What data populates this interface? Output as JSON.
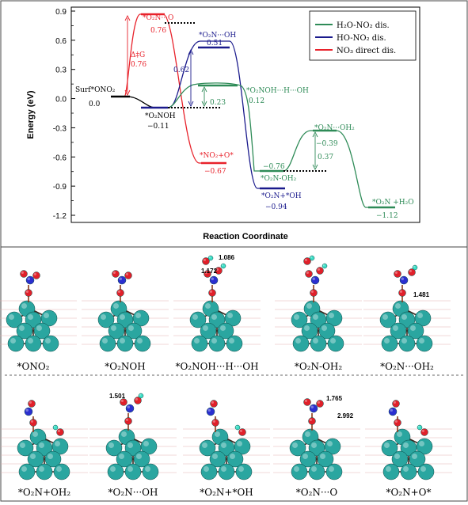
{
  "energy_diagram": {
    "ylabel": "Energy (eV)",
    "xlabel": "Reaction Coordinate",
    "yticks": [
      "0.9",
      "0.6",
      "0.3",
      "0.0",
      "-0.3",
      "-0.6",
      "-0.9",
      "-1.2"
    ],
    "legend": [
      {
        "label": "H₂O-NO₂ dis.",
        "color": "#2e8b57"
      },
      {
        "label": "HO-NO₂ dis.",
        "color": "#1a1a8c"
      },
      {
        "label": "NO₃ direct dis.",
        "color": "#e8222b"
      }
    ],
    "levels": {
      "surf_name": "Surf*ONO₂",
      "surf_val": "0.0",
      "o2noh_name": "*O₂NOH",
      "o2noh_val": "−0.11",
      "o2no_name": "*O₂N···O",
      "o2no_val": "0.76",
      "dg_label": "Δ‡G",
      "dg_val": "0.76",
      "no2o_name": "*NO₂+O*",
      "no2o_val": "−0.67",
      "o2n_oh_name": "*O₂N···OH",
      "o2n_oh_val": "0.51",
      "blue_barrier": "0.62",
      "o2n_plus_oh_name": "*O₂N+*OH",
      "o2n_plus_oh_val": "−0.94",
      "green_ts_name": "*O₂NOH···H···OH",
      "green_ts_val": "0.12",
      "green_barrier1": "0.23",
      "o2n_oh2_val": "−0.76",
      "o2n_oh2_name": "*O₂N-OH₂",
      "o2n_oh2_ts_name": "*O₂N···OH₂",
      "o2n_oh2_ts_val": "−0.39",
      "green_barrier2": "0.37",
      "final_name": "*O₂N +H₂O",
      "final_val": "−1.12"
    }
  },
  "structures": {
    "row1": [
      {
        "label": "*ONO₂"
      },
      {
        "label": "*O₂NOH"
      },
      {
        "label": "*O₂NOH···H···OH",
        "d1": "1.086",
        "d2": "1.172"
      },
      {
        "label": "*O₂N-OH₂"
      },
      {
        "label": "*O₂N···OH₂",
        "d1": "1.481"
      }
    ],
    "row2": [
      {
        "label": "*O₂N+OH₂"
      },
      {
        "label": "*O₂N···OH",
        "d1": "1.501"
      },
      {
        "label": "*O₂N+*OH"
      },
      {
        "label": "*O₂N···O",
        "d1": "1.765",
        "d2": "2.992"
      },
      {
        "label": "*O₂N+O*"
      }
    ]
  }
}
